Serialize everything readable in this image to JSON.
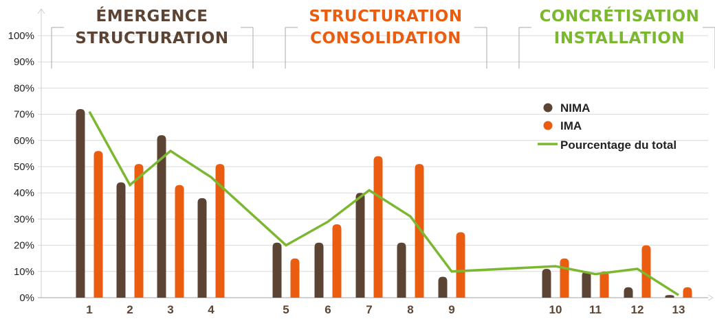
{
  "chart_data": {
    "type": "bar",
    "categories": [
      "1",
      "2",
      "3",
      "4",
      "5",
      "6",
      "7",
      "8",
      "9",
      "10",
      "11",
      "12",
      "13"
    ],
    "series": [
      {
        "name": "NIMA",
        "kind": "bar",
        "color": "#5c4434",
        "values": [
          72,
          44,
          62,
          38,
          21,
          21,
          40,
          21,
          8,
          11,
          10,
          4,
          1
        ]
      },
      {
        "name": "IMA",
        "kind": "bar",
        "color": "#ea5d10",
        "values": [
          56,
          51,
          43,
          51,
          15,
          28,
          54,
          51,
          25,
          15,
          10,
          20,
          4
        ]
      },
      {
        "name": "Pourcentage du total",
        "kind": "line",
        "color": "#7cb82f",
        "values": [
          71,
          43,
          56,
          46,
          20,
          29,
          41,
          31,
          10,
          12,
          9,
          11,
          1
        ]
      }
    ],
    "y_ticks": [
      "0%",
      "10%",
      "20%",
      "30%",
      "40%",
      "50%",
      "60%",
      "70%",
      "80%",
      "90%",
      "100%"
    ],
    "ylim": [
      0,
      100
    ],
    "grid": true,
    "legend_position": "right",
    "phases": [
      {
        "line1": "ÉMERGENCE",
        "line2": "STRUCTURATION",
        "color": "#5c4434"
      },
      {
        "line1": "STRUCTURATION",
        "line2": "CONSOLIDATION",
        "color": "#ea5d10"
      },
      {
        "line1": "CONCRÉTISATION",
        "line2": "INSTALLATION",
        "color": "#7cb82f"
      }
    ]
  }
}
